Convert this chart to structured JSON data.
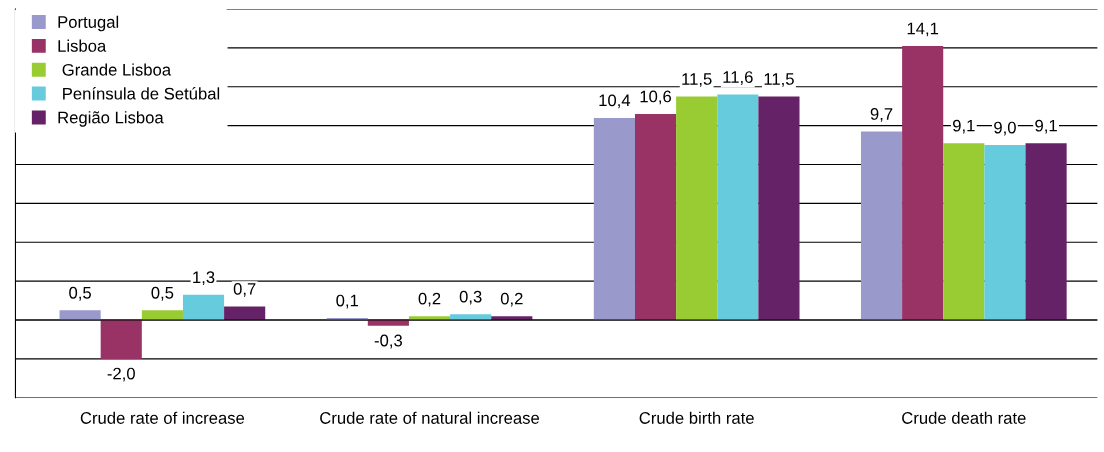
{
  "chart_data": {
    "type": "bar",
    "categories": [
      "Crude rate of increase",
      "Crude rate of natural increase",
      "Crude birth rate",
      "Crude death rate"
    ],
    "series": [
      {
        "name": "Portugal",
        "color": "#9999cc",
        "values": [
          0.5,
          0.1,
          10.4,
          9.7
        ],
        "value_labels": [
          "0,5",
          "0,1",
          "10,4",
          "9,7"
        ]
      },
      {
        "name": "Lisboa",
        "color": "#993366",
        "values": [
          -2.0,
          -0.3,
          10.6,
          14.1
        ],
        "value_labels": [
          "-2,0",
          "-0,3",
          "10,6",
          "14,1"
        ]
      },
      {
        "name": " Grande Lisboa",
        "color": "#99cc33",
        "values": [
          0.5,
          0.2,
          11.5,
          9.1
        ],
        "value_labels": [
          "0,5",
          "0,2",
          "11,5",
          "9,1"
        ]
      },
      {
        "name": " Península de Setúbal",
        "color": "#66ccdd",
        "values": [
          1.3,
          0.3,
          11.6,
          9.0
        ],
        "value_labels": [
          "1,3",
          "0,3",
          "11,6",
          "9,0"
        ]
      },
      {
        "name": "Região Lisboa",
        "color": "#662266",
        "values": [
          0.7,
          0.2,
          11.5,
          9.1
        ],
        "value_labels": [
          "0,7",
          "0,2",
          "11,5",
          "9,1"
        ]
      }
    ],
    "ylim": [
      -4,
      16
    ],
    "yticks": [
      {
        "value": -4,
        "label": null
      },
      {
        "value": -2,
        "label": null
      },
      {
        "value": 0,
        "label": null
      },
      {
        "value": 2,
        "label": null
      },
      {
        "value": 4,
        "label": null
      },
      {
        "value": 6,
        "label": null
      },
      {
        "value": 8,
        "label": null
      },
      {
        "value": 10,
        "label": null
      },
      {
        "value": 12,
        "label": null
      },
      {
        "value": 14,
        "label": null
      },
      {
        "value": 16,
        "label": null
      }
    ],
    "grid": "y",
    "legend": "top left",
    "tick_labels": "x"
  }
}
